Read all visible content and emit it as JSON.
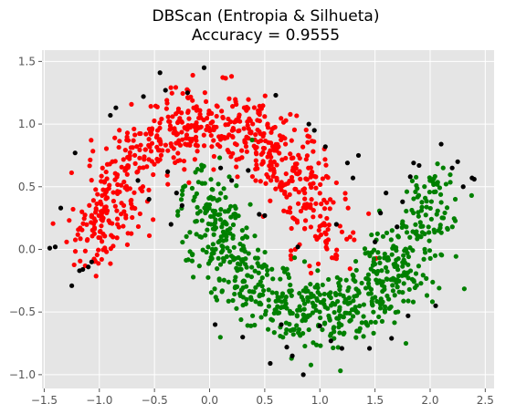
{
  "chart_data": {
    "type": "scatter",
    "title": "DBScan (Entropia & Silhueta)",
    "subtitle": "Accuracy = 0.9555",
    "xlabel": "",
    "ylabel": "",
    "xlim": [
      -1.52,
      2.58
    ],
    "ylim": [
      -1.11,
      1.59
    ],
    "xticks": [
      -1.5,
      -1.0,
      -0.5,
      0.0,
      0.5,
      1.0,
      1.5,
      2.0,
      2.5
    ],
    "xtick_labels": [
      "−1.5",
      "−1.0",
      "−0.5",
      "0.0",
      "0.5",
      "1.0",
      "1.5",
      "2.0",
      "2.5"
    ],
    "yticks": [
      -1.0,
      -0.5,
      0.0,
      0.5,
      1.0,
      1.5
    ],
    "ytick_labels": [
      "−1.0",
      "−0.5",
      "0.0",
      "0.5",
      "1.0",
      "1.5"
    ],
    "grid": true,
    "legend": "none",
    "style": {
      "background": "#e5e5e5",
      "grid_color": "#ffffff",
      "colors": {
        "cluster_upper": "#ff0000",
        "cluster_lower": "#008000",
        "noise": "#000000"
      }
    },
    "series": [
      {
        "color": "#ff0000",
        "generator": {
          "kind": "upper_moon",
          "count": 700,
          "noise": 0.15,
          "seed": 11
        }
      },
      {
        "color": "#008000",
        "generator": {
          "kind": "lower_moon",
          "count": 730,
          "noise": 0.15,
          "seed": 23
        }
      },
      {
        "color": "#000000",
        "points": [
          [
            -1.45,
            0.01
          ],
          [
            -1.4,
            0.02
          ],
          [
            -1.35,
            0.33
          ],
          [
            -1.25,
            -0.29
          ],
          [
            -1.22,
            0.77
          ],
          [
            -1.18,
            -0.17
          ],
          [
            -1.15,
            -0.16
          ],
          [
            -1.1,
            -0.14
          ],
          [
            -1.07,
            -0.1
          ],
          [
            -0.9,
            1.07
          ],
          [
            -0.85,
            1.13
          ],
          [
            -0.6,
            1.22
          ],
          [
            -0.45,
            1.41
          ],
          [
            -0.4,
            1.27
          ],
          [
            -0.38,
            0.62
          ],
          [
            -0.35,
            0.2
          ],
          [
            -0.3,
            0.45
          ],
          [
            -0.25,
            0.35
          ],
          [
            -0.2,
            1.25
          ],
          [
            -0.05,
            1.45
          ],
          [
            0.05,
            -0.6
          ],
          [
            0.1,
            0.65
          ],
          [
            0.2,
            0.55
          ],
          [
            0.35,
            0.63
          ],
          [
            0.45,
            0.28
          ],
          [
            0.5,
            0.27
          ],
          [
            0.55,
            -0.91
          ],
          [
            0.6,
            1.23
          ],
          [
            0.65,
            -0.6
          ],
          [
            0.7,
            -0.78
          ],
          [
            0.75,
            -0.85
          ],
          [
            0.8,
            0.02
          ],
          [
            0.9,
            1.0
          ],
          [
            0.85,
            -1.0
          ],
          [
            1.0,
            -0.61
          ],
          [
            1.05,
            0.82
          ],
          [
            1.1,
            -0.73
          ],
          [
            1.2,
            -0.79
          ],
          [
            1.25,
            0.69
          ],
          [
            1.3,
            0.57
          ],
          [
            1.35,
            0.75
          ],
          [
            1.45,
            -0.79
          ],
          [
            1.5,
            0.06
          ],
          [
            1.55,
            0.29
          ],
          [
            1.65,
            -0.71
          ],
          [
            1.7,
            0.18
          ],
          [
            1.75,
            0.38
          ],
          [
            1.8,
            -0.53
          ],
          [
            1.82,
            0.58
          ],
          [
            1.85,
            0.69
          ],
          [
            1.9,
            0.67
          ],
          [
            2.05,
            -0.45
          ],
          [
            2.1,
            0.84
          ],
          [
            2.2,
            0.65
          ],
          [
            2.25,
            0.7
          ],
          [
            2.3,
            0.5
          ],
          [
            2.38,
            0.57
          ],
          [
            2.4,
            0.56
          ],
          [
            -0.55,
            0.4
          ],
          [
            -0.65,
            0.55
          ],
          [
            1.15,
            0.2
          ],
          [
            0.95,
            0.95
          ],
          [
            1.6,
            0.45
          ],
          [
            0.3,
            -0.7
          ]
        ]
      }
    ]
  }
}
